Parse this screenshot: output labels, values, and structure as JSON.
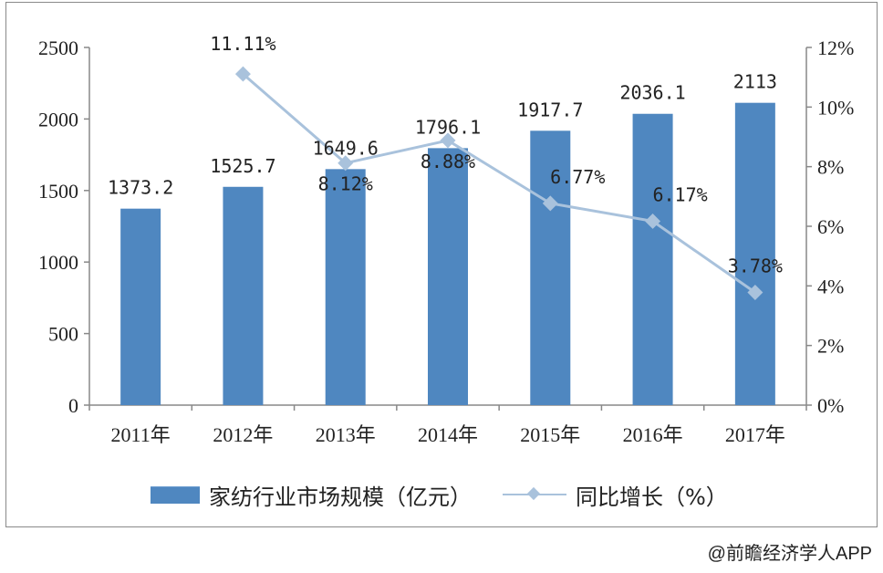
{
  "chart_data": {
    "type": "bar+line",
    "categories": [
      "2011年",
      "2012年",
      "2013年",
      "2014年",
      "2015年",
      "2016年",
      "2017年"
    ],
    "series": [
      {
        "name": "家纺行业市场规模（亿元）",
        "type": "bar",
        "axis": "left",
        "values": [
          1373.2,
          1525.7,
          1649.6,
          1796.1,
          1917.7,
          2036.1,
          2113
        ],
        "labels": [
          "1373.2",
          "1525.7",
          "1649.6",
          "1796.1",
          "1917.7",
          "2036.1",
          "2113"
        ],
        "color": "#4f87c0"
      },
      {
        "name": "同比增长（%）",
        "type": "line",
        "axis": "right",
        "values": [
          null,
          11.11,
          8.12,
          8.88,
          6.77,
          6.17,
          3.78
        ],
        "labels": [
          "",
          "11.11%",
          "8.12%",
          "8.88%",
          "6.77%",
          "6.17%",
          "3.78%"
        ],
        "color": "#a9c2dc"
      }
    ],
    "y_left": {
      "ticks": [
        "0",
        "500",
        "1000",
        "1500",
        "2000",
        "2500"
      ],
      "ylim": [
        0,
        2500
      ]
    },
    "y_right": {
      "ticks": [
        "0%",
        "2%",
        "4%",
        "6%",
        "8%",
        "10%",
        "12%"
      ],
      "ylim": [
        0,
        12
      ]
    },
    "grid": false,
    "legend_position": "bottom"
  },
  "legend": {
    "bar_label": "家纺行业市场规模（亿元）",
    "line_label": "同比增长（%）"
  },
  "footer": {
    "text": "@前瞻经济学人APP"
  }
}
